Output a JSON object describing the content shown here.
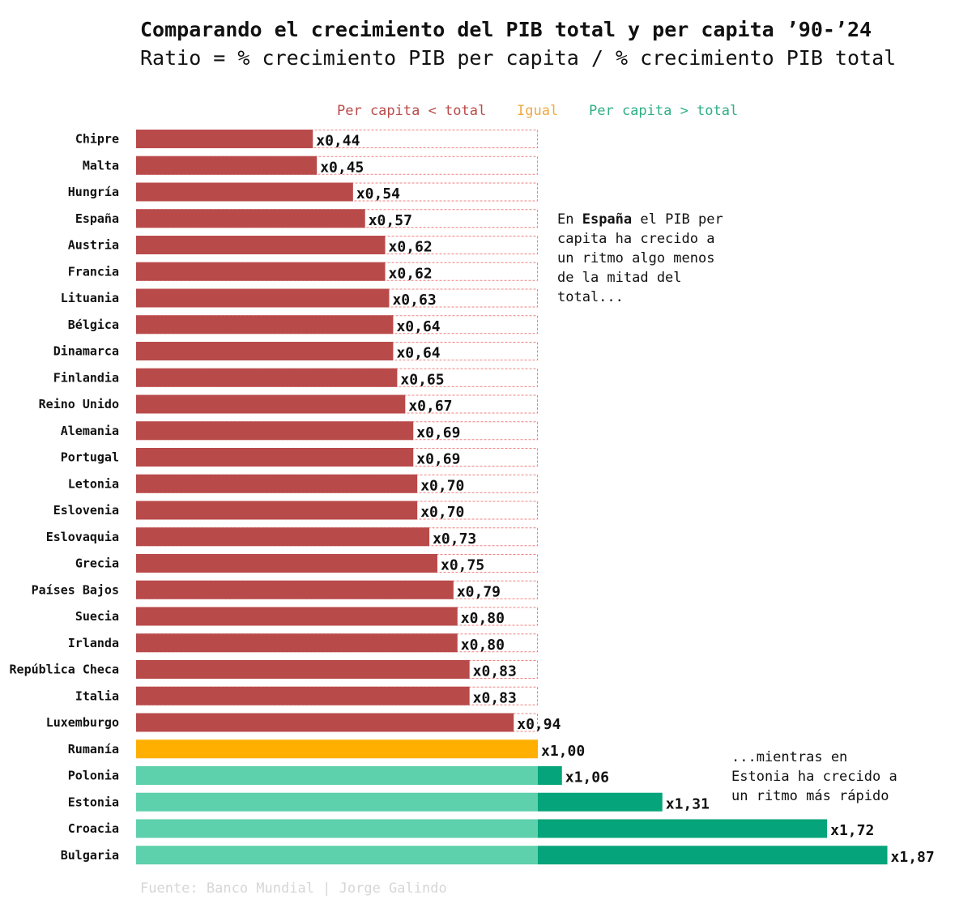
{
  "chart_data": {
    "type": "bar",
    "orientation": "horizontal",
    "title": "Comparando el crecimiento del PIB total y per capita ’90-’24",
    "subtitle": "Ratio = % crecimiento PIB per capita / % crecimiento PIB total",
    "legend": [
      {
        "label": "Per capita < total",
        "color": "#b94a4a"
      },
      {
        "label": "Igual",
        "color": "#f0a840"
      },
      {
        "label": "Per capita > total",
        "color": "#2fae86"
      }
    ],
    "reference_value": 1.0,
    "xlim": [
      0,
      1.87
    ],
    "categories": [
      "Chipre",
      "Malta",
      "Hungría",
      "España",
      "Austria",
      "Francia",
      "Lituania",
      "Bélgica",
      "Dinamarca",
      "Finlandia",
      "Reino Unido",
      "Alemania",
      "Portugal",
      "Letonia",
      "Eslovenia",
      "Eslovaquia",
      "Grecia",
      "Países Bajos",
      "Suecia",
      "Irlanda",
      "República Checa",
      "Italia",
      "Luxemburgo",
      "Rumanía",
      "Polonia",
      "Estonia",
      "Croacia",
      "Bulgaria"
    ],
    "values": [
      0.44,
      0.45,
      0.54,
      0.57,
      0.62,
      0.62,
      0.63,
      0.64,
      0.64,
      0.65,
      0.67,
      0.69,
      0.69,
      0.7,
      0.7,
      0.73,
      0.75,
      0.79,
      0.8,
      0.8,
      0.83,
      0.83,
      0.94,
      1.0,
      1.06,
      1.31,
      1.72,
      1.87
    ],
    "value_labels": [
      "x0,44",
      "x0,45",
      "x0,54",
      "x0,57",
      "x0,62",
      "x0,62",
      "x0,63",
      "x0,64",
      "x0,64",
      "x0,65",
      "x0,67",
      "x0,69",
      "x0,69",
      "x0,70",
      "x0,70",
      "x0,73",
      "x0,75",
      "x0,79",
      "x0,80",
      "x0,80",
      "x0,83",
      "x0,83",
      "x0,94",
      "x1,00",
      "x1,06",
      "x1,31",
      "x1,72",
      "x1,87"
    ],
    "annotations": [
      {
        "target": "España",
        "bold": "España",
        "lines": [
          "En España el PIB per",
          "capita ha crecido a",
          "un ritmo algo menos",
          "de la mitad del",
          "total..."
        ]
      },
      {
        "target": "Estonia",
        "lines": [
          "...mientras en",
          "Estonia ha crecido a",
          "un ritmo más rápido"
        ]
      }
    ],
    "source": "Fuente: Banco Mundial | Jorge Galindo"
  },
  "colors": {
    "red": "#b94a4a",
    "red_dashed": "#f08080",
    "orange": "#ffaf00",
    "green_light": "#5dd0ac",
    "green_dark": "#06a47a"
  }
}
